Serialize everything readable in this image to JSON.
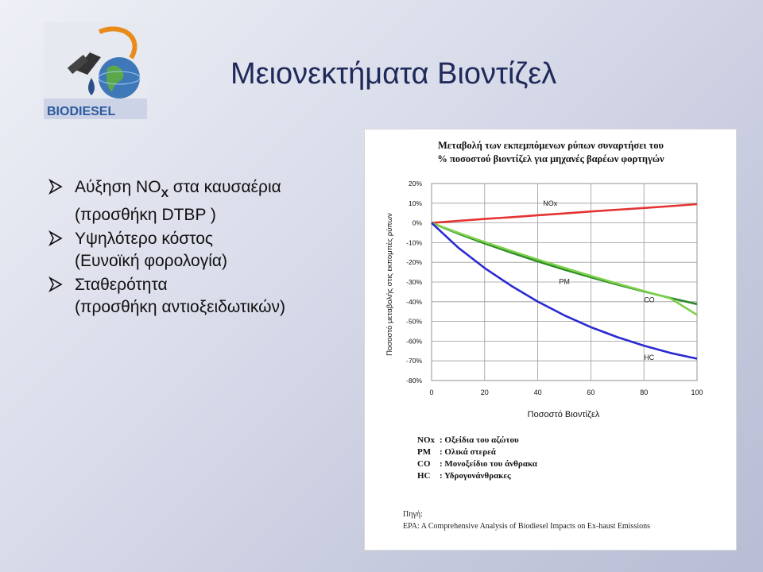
{
  "slide": {
    "title": "Μειονεκτήματα Βιοντίζελ",
    "logo_text": "BIODIESEL",
    "bullets": [
      {
        "main": "Αύξηση NO",
        "subscript": "X",
        "main_after": " στα καυσαέρια",
        "sub": "(προσθήκη DTBP )"
      },
      {
        "main": "Υψηλότερο κόστος",
        "sub": "(Ευνοϊκή φορολογία)"
      },
      {
        "main": "Σταθερότητα",
        "sub": "(προσθήκη αντιοξειδωτικών)"
      }
    ]
  },
  "chart_data": {
    "type": "line",
    "title_line1": "Μεταβολή των εκπεμπόμενων ρύπων συναρτήσει του",
    "title_line2": "% ποσοστού βιοντίζελ για μηχανές βαρέων φορτηγών",
    "xlabel": "Ποσοστό Βιοντίζελ",
    "ylabel": "Ποσοστό μεταβολής στις εκπομπές ρύπων",
    "xlim": [
      0,
      100
    ],
    "ylim": [
      -80,
      20
    ],
    "xticks": [
      "0",
      "20",
      "40",
      "60",
      "80",
      "100"
    ],
    "yticks": [
      "20%",
      "10%",
      "0%",
      "-10%",
      "-20%",
      "-30%",
      "-40%",
      "-50%",
      "-60%",
      "-70%",
      "-80%"
    ],
    "x": [
      0,
      10,
      20,
      30,
      40,
      50,
      60,
      70,
      80,
      90,
      100
    ],
    "series": [
      {
        "name": "NOx",
        "color": "#e53333",
        "values": [
          0,
          1.0,
          2.0,
          2.9,
          3.9,
          4.8,
          5.8,
          6.7,
          7.6,
          8.5,
          9.5
        ]
      },
      {
        "name": "PM",
        "color": "#2a8a2a",
        "values": [
          0,
          -5.4,
          -10.4,
          -15.1,
          -19.5,
          -23.7,
          -27.6,
          -31.3,
          -34.8,
          -38.1,
          -41.2
        ]
      },
      {
        "name": "CO",
        "color": "#7fd04a",
        "values": [
          0,
          -5.0,
          -9.7,
          -14.2,
          -18.6,
          -22.8,
          -26.9,
          -30.8,
          -34.6,
          -38.3,
          -46.7
        ]
      },
      {
        "name": "HC",
        "color": "#2a2ad0",
        "values": [
          0,
          -12.5,
          -22.9,
          -31.9,
          -39.9,
          -46.9,
          -52.9,
          -58.0,
          -62.3,
          -66.0,
          -68.9
        ]
      }
    ],
    "legend": [
      {
        "code": "NOx",
        "desc": ": Οξείδια του αζώτου"
      },
      {
        "code": "PM",
        "desc": ": Ολικά στερεά"
      },
      {
        "code": "CO",
        "desc": ": Μονοξείδιο του άνθρακα"
      },
      {
        "code": "HC",
        "desc": ": Υδρογονάνθρακες"
      }
    ],
    "source_label": "Πηγή:",
    "source_text": "EPA: A Comprehensive Analysis of Biodiesel Impacts on Ex-haust Emissions"
  }
}
